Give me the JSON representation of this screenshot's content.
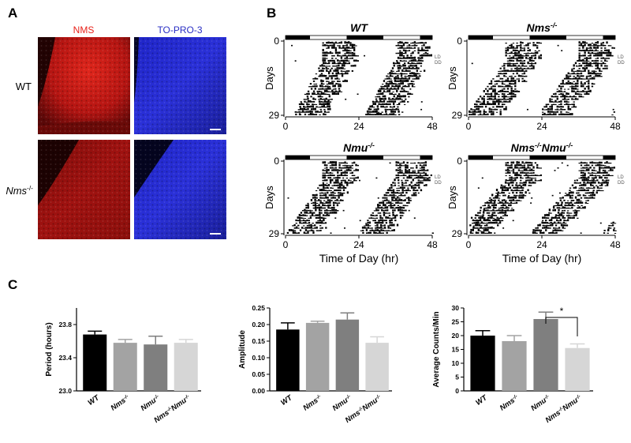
{
  "panel_labels": [
    "A",
    "B",
    "C"
  ],
  "panel_a": {
    "channels": [
      "NMS",
      "TO-PRO-3"
    ],
    "genotypes": [
      [
        {
          "t": "WT"
        }
      ],
      [
        {
          "t": "Nms",
          "italic": true
        },
        {
          "t": "-/-",
          "sup": true
        }
      ]
    ]
  },
  "panel_b": {
    "ylabel": "Days",
    "xlabel": "Time of Day (hr)",
    "xlim": [
      0,
      48
    ],
    "ylim": [
      0,
      29
    ],
    "xticks": [
      0,
      24,
      48
    ],
    "yticks": [
      0,
      29
    ],
    "condition_labels": [
      "LD",
      "DD"
    ],
    "titles": [
      [
        {
          "t": "WT"
        }
      ],
      [
        {
          "t": "Nms"
        },
        {
          "t": "-/-",
          "sup": true
        }
      ],
      [
        {
          "t": "Nmu"
        },
        {
          "t": "-/-",
          "sup": true
        }
      ],
      [
        {
          "t": "Nms"
        },
        {
          "t": "-/-",
          "sup": true
        },
        {
          "t": "Nmu"
        },
        {
          "t": "-/-",
          "sup": true
        }
      ]
    ]
  },
  "chart_data": [
    {
      "type": "bar",
      "ylabel": "Period  (hours)",
      "categories": [
        [
          {
            "t": "WT"
          }
        ],
        [
          {
            "t": "Nms"
          },
          {
            "t": "-/-",
            "sup": true
          }
        ],
        [
          {
            "t": "Nmu"
          },
          {
            "t": "-/-",
            "sup": true
          }
        ],
        [
          {
            "t": "Nms"
          },
          {
            "t": "-/-",
            "sup": true
          },
          {
            "t": "Nmu"
          },
          {
            "t": "-/-",
            "sup": true
          }
        ]
      ],
      "values": [
        23.68,
        23.58,
        23.56,
        23.58
      ],
      "errors": [
        0.04,
        0.04,
        0.1,
        0.04
      ],
      "colors": [
        "#000000",
        "#a3a3a3",
        "#7f7f7f",
        "#d6d6d6"
      ],
      "ylim": [
        23,
        24
      ],
      "yticks": [
        {
          "value": 23,
          "label": "23.0"
        },
        23.4,
        23.8
      ]
    },
    {
      "type": "bar",
      "ylabel": "Amplitude",
      "categories": [
        [
          {
            "t": "WT"
          }
        ],
        [
          {
            "t": "Nms"
          },
          {
            "t": "-/-",
            "sup": true
          }
        ],
        [
          {
            "t": "Nmu"
          },
          {
            "t": "-/-",
            "sup": true
          }
        ],
        [
          {
            "t": "Nms"
          },
          {
            "t": "-/-",
            "sup": true
          },
          {
            "t": "Nmu"
          },
          {
            "t": "-/-",
            "sup": true
          }
        ]
      ],
      "values": [
        0.185,
        0.205,
        0.215,
        0.145
      ],
      "errors": [
        0.02,
        0.005,
        0.02,
        0.018
      ],
      "colors": [
        "#000000",
        "#a3a3a3",
        "#7f7f7f",
        "#d6d6d6"
      ],
      "ylim": [
        0,
        0.25
      ],
      "yticks": [
        {
          "value": 0,
          "label": "0.00"
        },
        {
          "value": 0.05,
          "label": "0.05"
        },
        {
          "value": 0.1,
          "label": "0.10"
        },
        {
          "value": 0.15,
          "label": "0.15"
        },
        {
          "value": 0.2,
          "label": "0.20"
        },
        {
          "value": 0.25,
          "label": "0.25"
        }
      ]
    },
    {
      "type": "bar",
      "ylabel": "Average Counts/Min",
      "categories": [
        [
          {
            "t": "WT"
          }
        ],
        [
          {
            "t": "Nms"
          },
          {
            "t": "-/-",
            "sup": true
          }
        ],
        [
          {
            "t": "Nmu"
          },
          {
            "t": "-/-",
            "sup": true
          }
        ],
        [
          {
            "t": "Nms"
          },
          {
            "t": "-/-",
            "sup": true
          },
          {
            "t": "Nmu"
          },
          {
            "t": "-/-",
            "sup": true
          }
        ]
      ],
      "values": [
        20,
        18,
        26,
        15.5
      ],
      "errors": [
        1.8,
        2,
        2.5,
        1.5
      ],
      "colors": [
        "#000000",
        "#a3a3a3",
        "#7f7f7f",
        "#d6d6d6"
      ],
      "ylim": [
        0,
        30
      ],
      "yticks": [
        0,
        5,
        10,
        15,
        20,
        25,
        30
      ],
      "annotation": "*",
      "bracket": [
        2,
        3
      ]
    }
  ]
}
